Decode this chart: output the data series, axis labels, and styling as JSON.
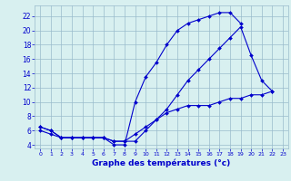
{
  "xlabel": "Graphe des températures (°c)",
  "x_hours": [
    0,
    1,
    2,
    3,
    4,
    5,
    6,
    7,
    8,
    9,
    10,
    11,
    12,
    13,
    14,
    15,
    16,
    17,
    18,
    19,
    20,
    21,
    22,
    23
  ],
  "line1": [
    6.5,
    6.0,
    5.0,
    5.0,
    5.0,
    5.0,
    5.0,
    4.0,
    4.0,
    10.0,
    13.5,
    15.5,
    18.0,
    20.0,
    21.0,
    21.5,
    22.0,
    22.5,
    22.5,
    21.0,
    null,
    null,
    null,
    null
  ],
  "line2": [
    6.5,
    6.0,
    5.0,
    5.0,
    5.0,
    5.0,
    5.0,
    4.5,
    4.5,
    4.5,
    6.0,
    7.5,
    9.0,
    11.0,
    13.0,
    14.5,
    16.0,
    17.5,
    19.0,
    20.5,
    16.5,
    13.0,
    11.5,
    null
  ],
  "line3": [
    6.0,
    5.5,
    5.0,
    5.0,
    5.0,
    5.0,
    5.0,
    4.5,
    4.5,
    5.5,
    6.5,
    7.5,
    8.5,
    9.0,
    9.5,
    9.5,
    9.5,
    10.0,
    10.5,
    10.5,
    11.0,
    11.0,
    11.5,
    null
  ],
  "ylim": [
    3.5,
    23.5
  ],
  "xlim": [
    -0.5,
    23.5
  ],
  "yticks": [
    4,
    6,
    8,
    10,
    12,
    14,
    16,
    18,
    20,
    22
  ],
  "ytick_labels": [
    "4",
    "6",
    "8",
    "10",
    "12",
    "14",
    "16",
    "18",
    "20",
    "22"
  ],
  "xticks": [
    0,
    1,
    2,
    3,
    4,
    5,
    6,
    7,
    8,
    9,
    10,
    11,
    12,
    13,
    14,
    15,
    16,
    17,
    18,
    19,
    20,
    21,
    22,
    23
  ],
  "line_color": "#0000cc",
  "bg_color": "#d8f0f0",
  "grid_color": "#99bbcc",
  "marker": "D",
  "markersize": 2.0,
  "linewidth": 0.8,
  "xlabel_fontsize": 6.5,
  "tick_fontsize_x": 4.5,
  "tick_fontsize_y": 5.5
}
